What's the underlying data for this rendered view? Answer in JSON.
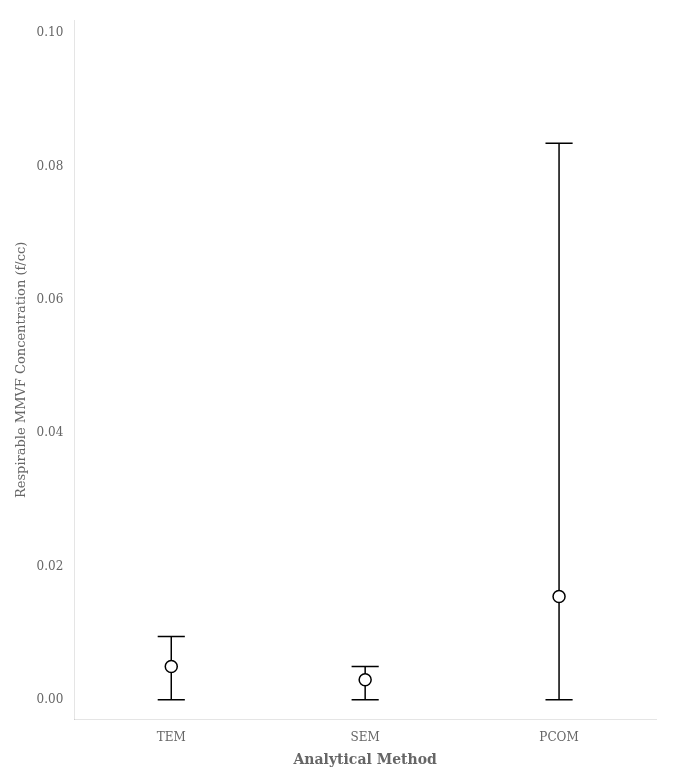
{
  "chart_data": {
    "type": "errorbar",
    "categories": [
      "TEM",
      "SEM",
      "PCOM"
    ],
    "values": [
      0.005,
      0.003,
      0.0155
    ],
    "error_lower": [
      0.005,
      0.003,
      0.0155
    ],
    "error_upper": [
      0.0045,
      0.002,
      0.068
    ],
    "ylim": [
      -0.003,
      0.102
    ],
    "yticks": [
      {
        "value": 0,
        "label": "0.00"
      },
      0.02,
      0.04,
      0.06,
      0.08,
      {
        "value": 0.1,
        "label": "0.10"
      }
    ],
    "ylabel": "Respirable MMVF Concentration (f/cc)",
    "xlabel": "Analytical Method",
    "color": "black",
    "marker": "circle",
    "grid": false
  }
}
